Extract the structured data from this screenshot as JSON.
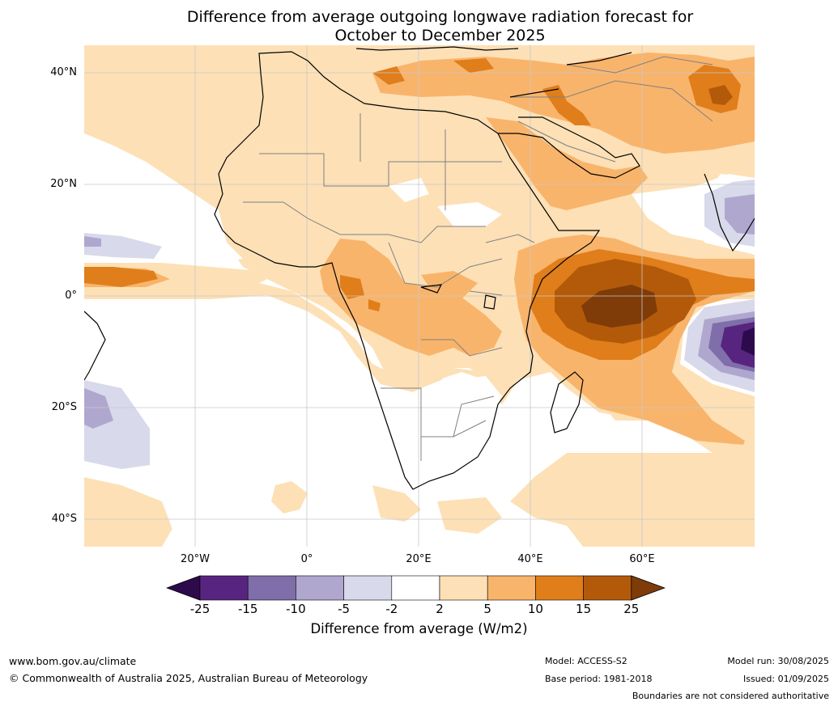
{
  "title": {
    "line1": "Difference from average outgoing longwave radiation forecast for",
    "line2": "October to December 2025"
  },
  "map": {
    "region": "Africa",
    "projection": "plate-carree",
    "lon_range": [
      -40,
      80
    ],
    "lat_range": [
      -45,
      45
    ],
    "lat_ticks": [
      "40°N",
      "20°N",
      "0°",
      "20°S",
      "40°S"
    ],
    "lon_ticks": [
      "20°W",
      "0°",
      "20°E",
      "40°E",
      "60°E"
    ],
    "gridlines": true,
    "coastline_color": "#000000",
    "border_color": "#808080"
  },
  "colorbar": {
    "levels": [
      "-25",
      "-15",
      "-10",
      "-5",
      "-2",
      "2",
      "5",
      "10",
      "15",
      "25"
    ],
    "colors": [
      "#2d0a4b",
      "#57257f",
      "#7f6ea9",
      "#b0a7cf",
      "#d8d9ea",
      "#ffffff",
      "#fde0b6",
      "#f9b46b",
      "#df7e1b",
      "#b35a0a",
      "#7f3b08"
    ],
    "extend": "both",
    "label": "Difference from average (W/m2)"
  },
  "footer": {
    "url": "www.bom.gov.au/climate",
    "copyright": "© Commonwealth of Australia 2025, Australian Bureau of Meteorology",
    "model": "Model: ACCESS-S2",
    "base_period": "Base period: 1981-2018",
    "model_run": "Model run: 30/08/2025",
    "issued": "Issued: 01/09/2025",
    "disclaimer": "Boundaries are not considered authoritative"
  }
}
